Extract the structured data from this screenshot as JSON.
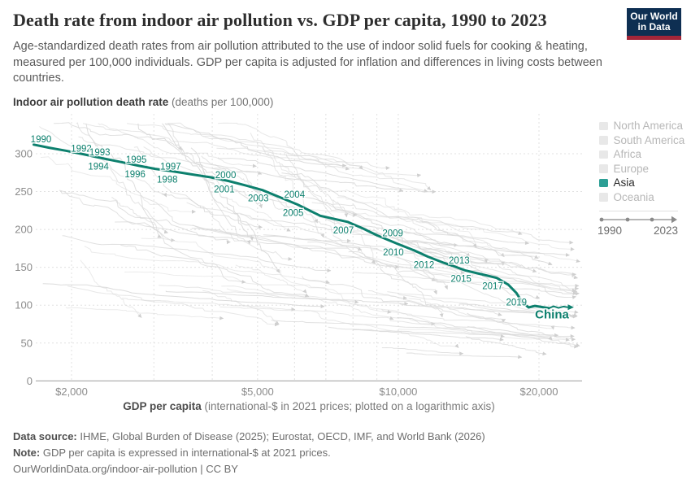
{
  "header": {
    "title": "Death rate from indoor air pollution vs. GDP per capita, 1990 to 2023",
    "subtitle": "Age-standardized death rates from air pollution attributed to the use of indoor solid fuels for cooking & heating, measured per 100,000 individuals. GDP per capita is adjusted for inflation and differences in living costs between countries.",
    "logo": {
      "line1": "Our World",
      "line2": "in Data"
    }
  },
  "colors": {
    "accent_teal": "#0d806e",
    "legend_asia_swatch": "#2c9f95",
    "muted_swatch": "#e8e8e8",
    "muted_text": "#b7b7b7",
    "active_text": "#2a2a2a",
    "grid": "#e0e0e0",
    "axis_line": "#9c9c9c",
    "tick_text": "#8c8c8c",
    "background_lines": "#d9d9d9",
    "background_arrow": "#cfcfcf"
  },
  "chart_data": {
    "type": "line",
    "title": "Death rate from indoor air pollution vs. GDP per capita, 1990 to 2023",
    "x_axis": {
      "label_bold": "GDP per capita",
      "label_rest": " (international-$ in 2021 prices; plotted on a logarithmic axis)",
      "scale": "log",
      "range": [
        1620,
        24700
      ],
      "ticks": [
        2000,
        5000,
        10000,
        20000
      ],
      "tick_labels": [
        "$2,000",
        "$5,000",
        "$10,000",
        "$20,000"
      ],
      "gridlines": [
        2000,
        3000,
        4000,
        5000,
        6000,
        7000,
        8000,
        9000,
        10000,
        20000
      ]
    },
    "y_axis": {
      "label_bold": "Indoor air pollution death rate",
      "label_rest": " (deaths per 100,000)",
      "scale": "linear",
      "range": [
        0,
        347
      ],
      "ticks": [
        0,
        50,
        100,
        150,
        200,
        250,
        300
      ],
      "grid": "dashed"
    },
    "legend_position": "right",
    "series": [
      {
        "name": "China",
        "color": "#0d806e",
        "years": [
          1990,
          1991,
          1992,
          1993,
          1994,
          1995,
          1996,
          1997,
          1998,
          1999,
          2000,
          2001,
          2002,
          2003,
          2004,
          2005,
          2006,
          2007,
          2008,
          2009,
          2010,
          2011,
          2012,
          2013,
          2014,
          2015,
          2016,
          2017,
          2018,
          2019,
          2020,
          2021,
          2022,
          2023
        ],
        "gdp": [
          1660,
          1790,
          1945,
          2130,
          2330,
          2550,
          2790,
          3020,
          3270,
          3590,
          3960,
          4330,
          4720,
          5120,
          5560,
          6080,
          6810,
          7790,
          8350,
          9020,
          9960,
          10850,
          11580,
          12510,
          13200,
          13900,
          15020,
          16240,
          17200,
          17900,
          18400,
          19000,
          19600,
          21000
        ],
        "rate": [
          312,
          308,
          304,
          299,
          294,
          289,
          284,
          280,
          277,
          273,
          269,
          264,
          258,
          252,
          243,
          233,
          218,
          210,
          202,
          192,
          181,
          172,
          164,
          156,
          151,
          146,
          141,
          136,
          127,
          116,
          104,
          97,
          99,
          96
        ],
        "year_labels": [
          {
            "year": 1990,
            "side": "above",
            "dx": 9,
            "dy": -3
          },
          {
            "year": 1992,
            "side": "above"
          },
          {
            "year": 1993,
            "side": "above"
          },
          {
            "year": 1994,
            "side": "below"
          },
          {
            "year": 1995,
            "side": "above"
          },
          {
            "year": 1996,
            "side": "below"
          },
          {
            "year": 1997,
            "side": "above"
          },
          {
            "year": 1998,
            "side": "below"
          },
          {
            "year": 2000,
            "side": "above"
          },
          {
            "year": 2001,
            "side": "below"
          },
          {
            "year": 2003,
            "side": "below"
          },
          {
            "year": 2004,
            "side": "above"
          },
          {
            "year": 2005,
            "side": "below"
          },
          {
            "year": 2007,
            "side": "below"
          },
          {
            "year": 2009,
            "side": "above"
          },
          {
            "year": 2010,
            "side": "below"
          },
          {
            "year": 2012,
            "side": "below"
          },
          {
            "year": 2013,
            "side": "above"
          },
          {
            "year": 2015,
            "side": "below"
          },
          {
            "year": 2017,
            "side": "below"
          },
          {
            "year": 2019,
            "side": "below",
            "dx": 0,
            "dy": 15
          }
        ],
        "end_label": "China",
        "end_arrow": true
      }
    ],
    "background_series": {
      "description": "Trajectories of all other countries 1990-2023 (decorative gray context lines, not individually labeled)",
      "count": 105,
      "seed": 12
    }
  },
  "legend": {
    "items": [
      {
        "label": "North America",
        "muted": true
      },
      {
        "label": "South America",
        "muted": true
      },
      {
        "label": "Africa",
        "muted": true
      },
      {
        "label": "Europe",
        "muted": true
      },
      {
        "label": "Asia",
        "muted": false
      },
      {
        "label": "Oceania",
        "muted": true
      }
    ]
  },
  "timeline": {
    "start": "1990",
    "end": "2023"
  },
  "footer": {
    "data_source_label": "Data source:",
    "data_source_text": " IHME, Global Burden of Disease (2025); Eurostat, OECD, IMF, and World Bank (2026)",
    "note_label": "Note:",
    "note_text": " GDP per capita is expressed in international-$ at 2021 prices.",
    "license_text": "OurWorldinData.org/indoor-air-pollution | CC BY"
  }
}
